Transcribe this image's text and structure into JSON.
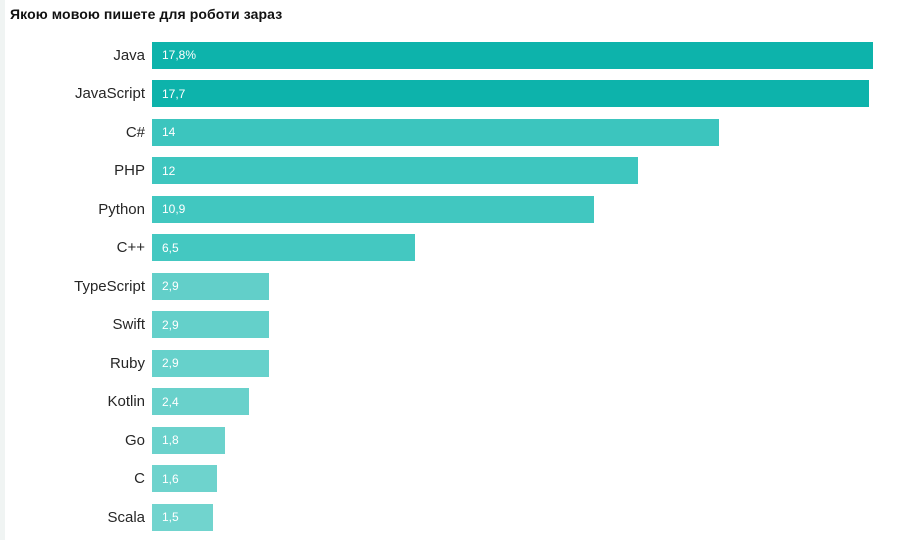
{
  "page": {
    "background": "#ffffff",
    "left_edge_color": "#f0f4f3"
  },
  "chart_data": {
    "type": "bar",
    "orientation": "horizontal",
    "title": "Якою мовою пишете для роботи зараз",
    "title_color": "#111111",
    "categories": [
      "Java",
      "JavaScript",
      "C#",
      "PHP",
      "Python",
      "C++",
      "TypeScript",
      "Swift",
      "Ruby",
      "Kotlin",
      "Go",
      "C",
      "Scala"
    ],
    "values": [
      17.8,
      17.7,
      14,
      12,
      10.9,
      6.5,
      2.9,
      2.9,
      2.9,
      2.4,
      1.8,
      1.6,
      1.5
    ],
    "value_labels": [
      "17,8%",
      "17,7",
      "14",
      "12",
      "10,9",
      "6,5",
      "2,9",
      "2,9",
      "2,9",
      "2,4",
      "1,8",
      "1,6",
      "1,5"
    ],
    "bar_colors": [
      "#0db3ab",
      "#0db3ab",
      "#3cc5be",
      "#3ec6bf",
      "#41c7c0",
      "#44c8c1",
      "#62cfc9",
      "#64d0ca",
      "#66d1cb",
      "#69d1cb",
      "#6bd2cc",
      "#6ed3cd",
      "#71d4ce"
    ],
    "xlim": [
      0,
      17.8
    ],
    "value_label_color": "#ffffff",
    "category_label_color": "#262626",
    "grid": false,
    "legend": false,
    "unit": "%"
  }
}
